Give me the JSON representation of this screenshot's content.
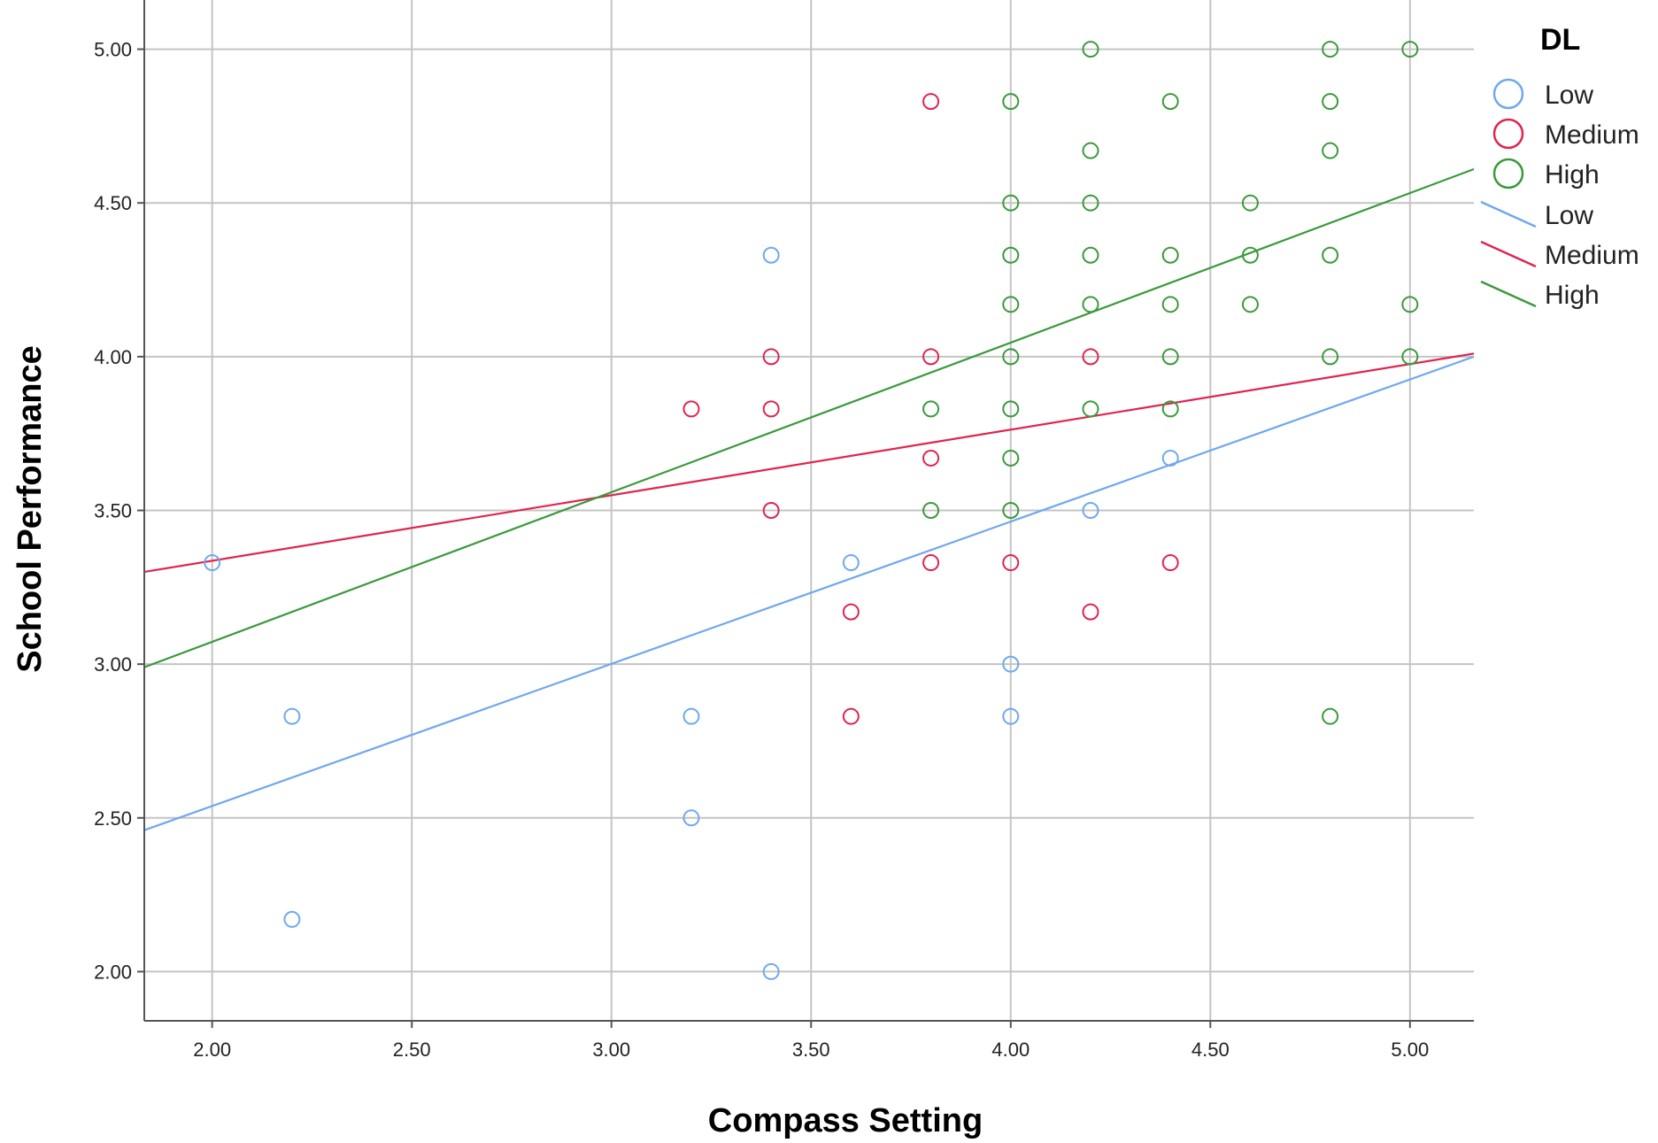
{
  "chart_data": {
    "type": "scatter",
    "xlabel": "Compass Setting",
    "ylabel": "School Performance",
    "xlim": [
      1.83,
      5.16
    ],
    "ylim": [
      1.84,
      5.16
    ],
    "x_ticks": [
      "2.00",
      "2.50",
      "3.00",
      "3.50",
      "4.00",
      "4.50",
      "5.00"
    ],
    "y_ticks": [
      "2.00",
      "2.50",
      "3.00",
      "3.50",
      "4.00",
      "4.50",
      "5.00"
    ],
    "grid": true,
    "legend": {
      "title": "DL",
      "position": "top-right",
      "marker_entries": [
        "Low",
        "Medium",
        "High"
      ],
      "line_entries": [
        "Low",
        "Medium",
        "High"
      ]
    },
    "colors": {
      "Low": "#6FA8F0",
      "Medium": "#E0244F",
      "High": "#3A9A3A"
    },
    "series": [
      {
        "name": "Low",
        "points": [
          [
            2.0,
            3.33
          ],
          [
            2.2,
            2.83
          ],
          [
            2.2,
            2.17
          ],
          [
            3.2,
            2.83
          ],
          [
            3.2,
            2.5
          ],
          [
            3.4,
            4.33
          ],
          [
            3.4,
            2.0
          ],
          [
            3.6,
            3.33
          ],
          [
            4.0,
            3.0
          ],
          [
            4.0,
            2.83
          ],
          [
            4.2,
            3.5
          ],
          [
            4.4,
            3.67
          ]
        ],
        "fit": {
          "x": [
            1.83,
            5.16
          ],
          "y": [
            2.46,
            4.0
          ]
        }
      },
      {
        "name": "Medium",
        "points": [
          [
            3.2,
            3.83
          ],
          [
            3.4,
            4.0
          ],
          [
            3.4,
            3.83
          ],
          [
            3.4,
            3.5
          ],
          [
            3.6,
            3.17
          ],
          [
            3.6,
            2.83
          ],
          [
            3.8,
            4.83
          ],
          [
            3.8,
            4.0
          ],
          [
            3.8,
            3.67
          ],
          [
            3.8,
            3.33
          ],
          [
            4.0,
            3.33
          ],
          [
            4.2,
            4.0
          ],
          [
            4.2,
            3.17
          ],
          [
            4.4,
            3.33
          ]
        ],
        "fit": {
          "x": [
            1.83,
            5.16
          ],
          "y": [
            3.3,
            4.01
          ]
        }
      },
      {
        "name": "High",
        "points": [
          [
            3.8,
            3.83
          ],
          [
            3.8,
            3.5
          ],
          [
            4.0,
            4.83
          ],
          [
            4.0,
            4.5
          ],
          [
            4.0,
            4.33
          ],
          [
            4.0,
            4.17
          ],
          [
            4.0,
            4.0
          ],
          [
            4.0,
            3.83
          ],
          [
            4.0,
            3.67
          ],
          [
            4.0,
            3.5
          ],
          [
            4.2,
            5.0
          ],
          [
            4.2,
            4.67
          ],
          [
            4.2,
            4.5
          ],
          [
            4.2,
            4.33
          ],
          [
            4.2,
            4.17
          ],
          [
            4.2,
            3.83
          ],
          [
            4.4,
            4.83
          ],
          [
            4.4,
            4.33
          ],
          [
            4.4,
            4.17
          ],
          [
            4.4,
            4.0
          ],
          [
            4.4,
            3.83
          ],
          [
            4.6,
            4.5
          ],
          [
            4.6,
            4.33
          ],
          [
            4.6,
            4.17
          ],
          [
            4.8,
            5.0
          ],
          [
            4.8,
            4.83
          ],
          [
            4.8,
            4.67
          ],
          [
            4.8,
            4.33
          ],
          [
            4.8,
            4.0
          ],
          [
            4.8,
            2.83
          ],
          [
            5.0,
            5.0
          ],
          [
            5.0,
            4.17
          ],
          [
            5.0,
            4.0
          ]
        ],
        "fit": {
          "x": [
            1.83,
            5.16
          ],
          "y": [
            2.99,
            4.61
          ]
        }
      }
    ]
  }
}
